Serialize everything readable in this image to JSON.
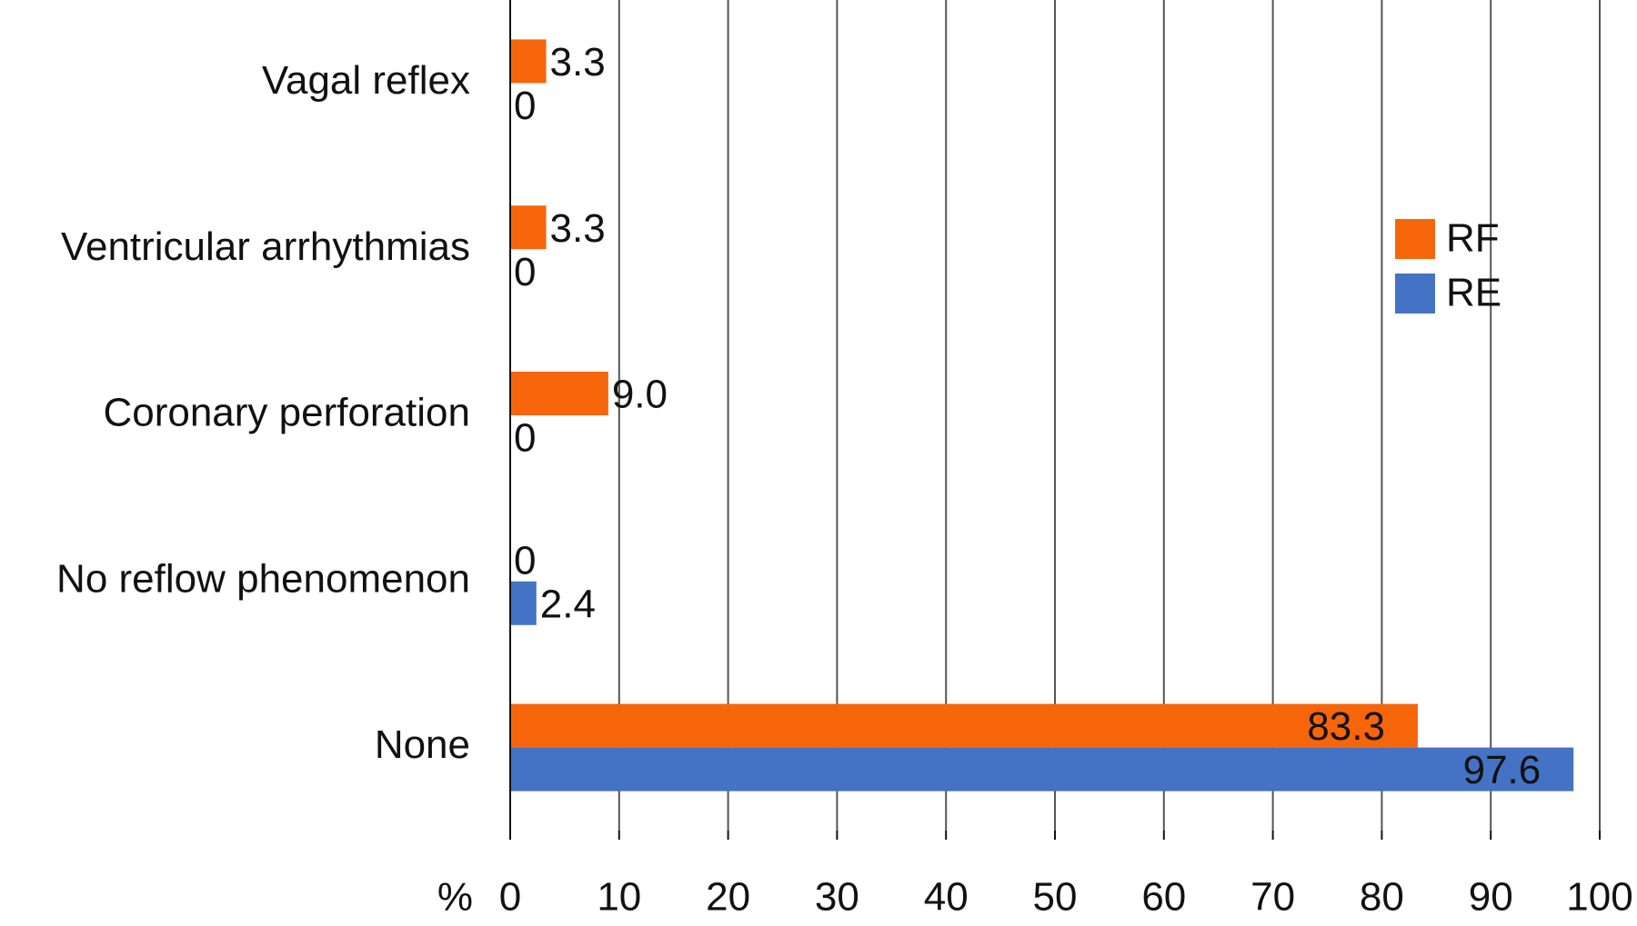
{
  "chart_data": {
    "type": "hbar",
    "categories": [
      "Vagal reflex",
      "Ventricular arrhythmias",
      "Coronary perforation",
      "No reflow phenomenon",
      "None"
    ],
    "series": [
      {
        "name": "RF",
        "color": "#f7650b",
        "values": [
          3.3,
          3.3,
          9.0,
          0,
          83.3
        ],
        "value_labels": [
          "3.3",
          "3.3",
          "9.0",
          "0",
          "83.3"
        ]
      },
      {
        "name": "RE",
        "color": "#4472c4",
        "values": [
          0,
          0,
          0,
          2.4,
          97.6
        ]
      }
    ],
    "xlabel": "%",
    "xlim": [
      0,
      100
    ],
    "xticks": [
      0,
      10,
      20,
      30,
      40,
      50,
      60,
      70,
      80,
      90,
      100
    ],
    "grid": true,
    "legend": "right"
  }
}
